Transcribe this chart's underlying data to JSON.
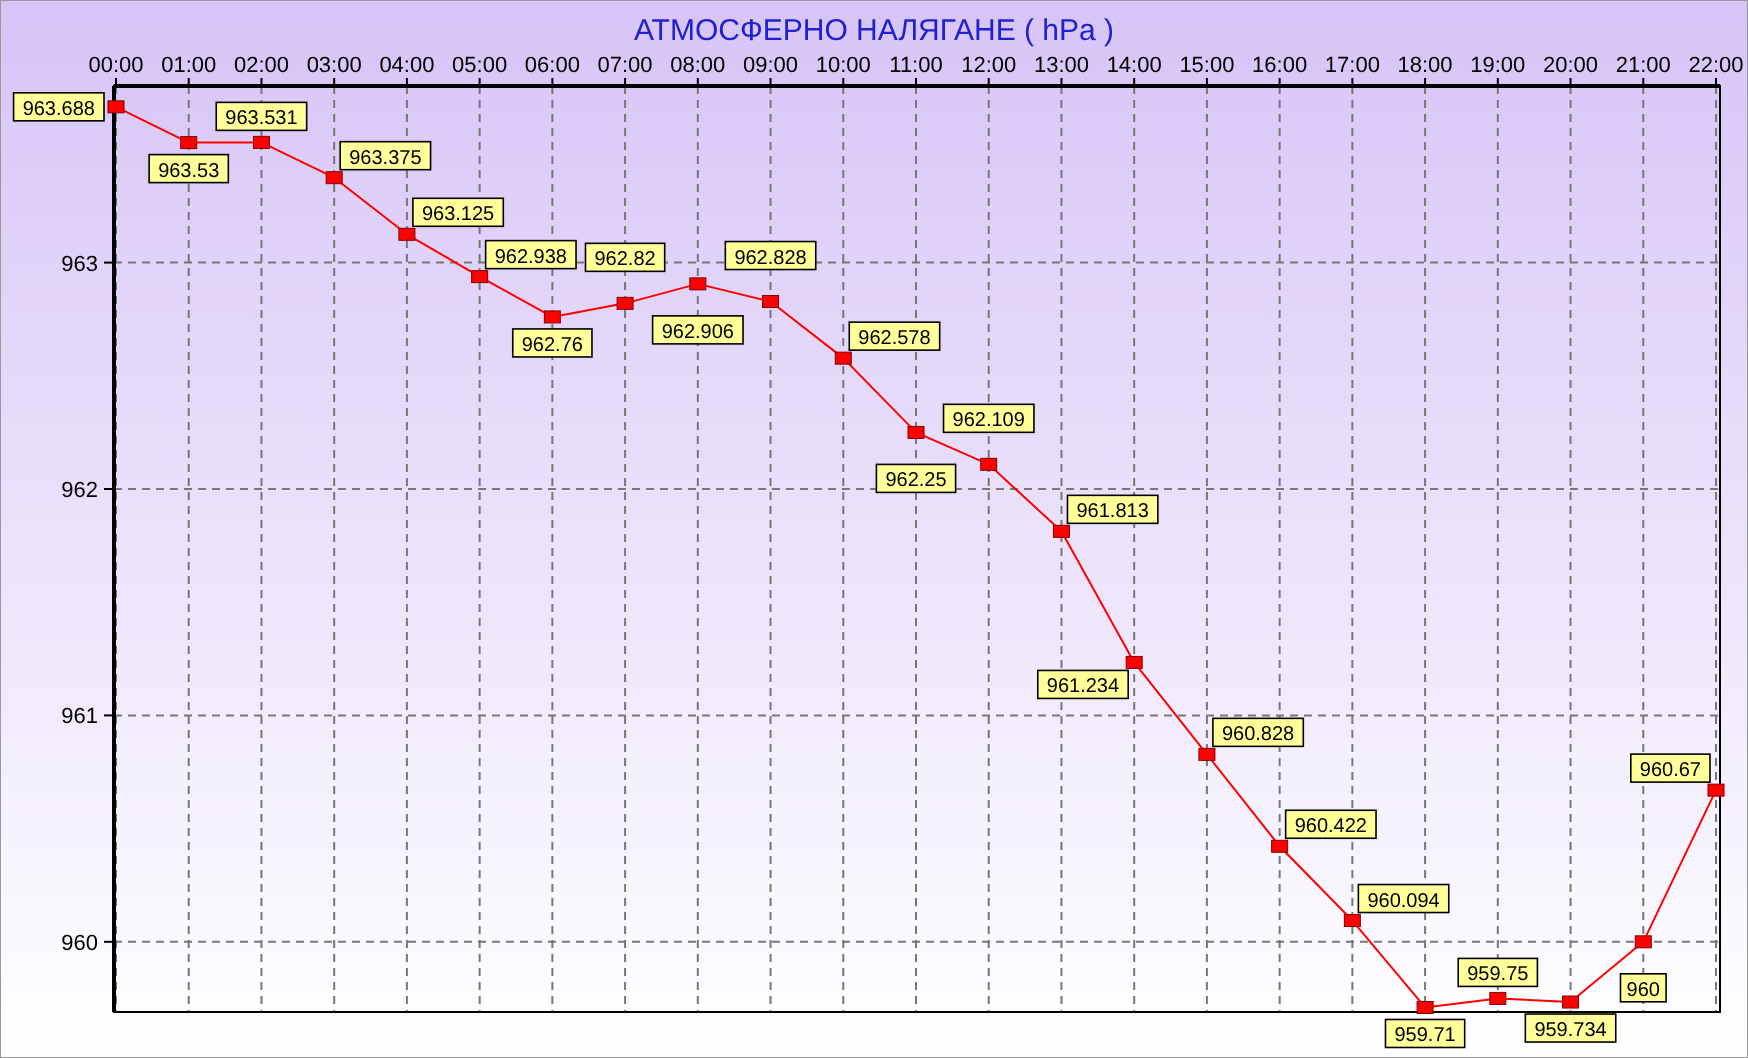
{
  "chart_data": {
    "type": "line",
    "title": "АТМОСФЕРНО НАЛЯГАНЕ  ( hPa )",
    "categories": [
      "00:00",
      "01:00",
      "02:00",
      "03:00",
      "04:00",
      "05:00",
      "06:00",
      "07:00",
      "08:00",
      "09:00",
      "10:00",
      "11:00",
      "12:00",
      "13:00",
      "14:00",
      "15:00",
      "16:00",
      "17:00",
      "18:00",
      "19:00",
      "20:00",
      "21:00",
      "22:00"
    ],
    "series": [
      {
        "color": "#ff0000",
        "values": [
          963.688,
          963.53,
          963.531,
          963.375,
          963.125,
          962.938,
          962.76,
          962.82,
          962.906,
          962.828,
          962.578,
          962.25,
          962.109,
          961.813,
          961.234,
          960.828,
          960.422,
          960.094,
          959.71,
          959.75,
          959.734,
          960,
          960.67
        ]
      }
    ],
    "ylim": [
      959.69,
      963.78
    ],
    "yticks": [
      960,
      961,
      962,
      963
    ],
    "grid": true,
    "marker": "square",
    "line_style": "solid",
    "data_labels": true
  }
}
